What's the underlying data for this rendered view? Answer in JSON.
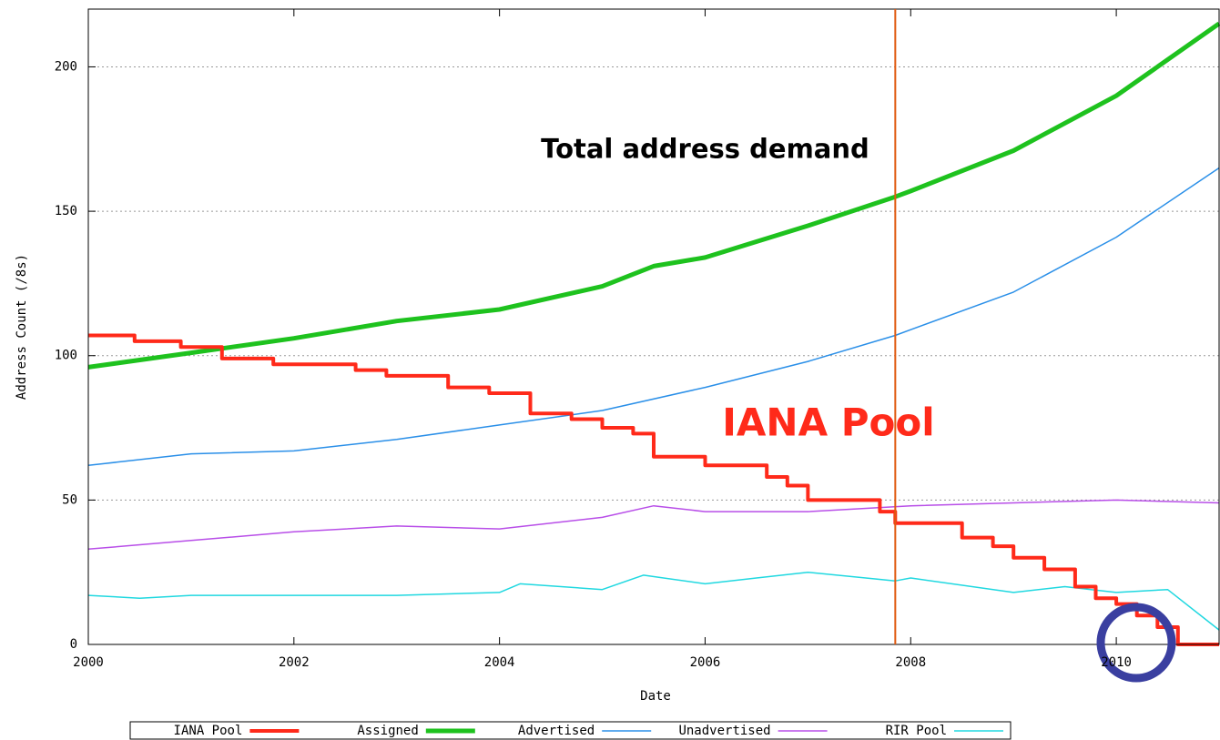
{
  "chart_data": {
    "type": "line",
    "x_label": "Date",
    "y_label": "Address Count (/8s)",
    "xlim": [
      2000,
      2011
    ],
    "ylim": [
      0,
      220
    ],
    "xticks": [
      2000,
      2002,
      2004,
      2006,
      2008,
      2010
    ],
    "yticks": [
      0,
      50,
      100,
      150,
      200
    ],
    "grid": true,
    "legend": "bottom",
    "marker_x": 2007.85,
    "marker_color": "#e05a10",
    "annotations": [
      {
        "text": "Total address demand",
        "x": 2006,
        "y": 171,
        "color": "#000000"
      },
      {
        "text": "IANA Pool",
        "x": 2007.2,
        "y": 76,
        "color": "#ff2a1a"
      }
    ],
    "series": [
      {
        "name": "IANA Pool",
        "color": "#ff2a1a",
        "width": 4,
        "x": [
          2000,
          2000.45,
          2000.45,
          2000.9,
          2000.9,
          2001.3,
          2001.3,
          2001.8,
          2001.8,
          2002.6,
          2002.6,
          2002.9,
          2002.9,
          2003.5,
          2003.5,
          2003.9,
          2003.9,
          2004.3,
          2004.3,
          2004.7,
          2004.7,
          2005,
          2005,
          2005.3,
          2005.3,
          2005.5,
          2005.5,
          2006,
          2006,
          2006.6,
          2006.6,
          2006.8,
          2006.8,
          2007,
          2007,
          2007.7,
          2007.7,
          2007.85,
          2007.85,
          2008.5,
          2008.5,
          2008.8,
          2008.8,
          2009,
          2009,
          2009.3,
          2009.3,
          2009.6,
          2009.6,
          2009.8,
          2009.8,
          2010,
          2010,
          2010.2,
          2010.2,
          2010.4,
          2010.4,
          2010.6,
          2010.6,
          2011
        ],
        "values": [
          107,
          107,
          105,
          105,
          103,
          103,
          99,
          99,
          97,
          97,
          95,
          95,
          93,
          93,
          89,
          89,
          87,
          87,
          80,
          80,
          78,
          78,
          75,
          75,
          73,
          73,
          65,
          65,
          62,
          62,
          58,
          58,
          55,
          55,
          50,
          50,
          46,
          46,
          42,
          42,
          37,
          37,
          34,
          34,
          30,
          30,
          26,
          26,
          20,
          20,
          16,
          16,
          14,
          14,
          10,
          10,
          6,
          6,
          0,
          0
        ]
      },
      {
        "name": "Assigned",
        "color": "#1ec21e",
        "width": 5,
        "x": [
          2000,
          2001,
          2002,
          2003,
          2004,
          2005,
          2005.5,
          2006,
          2007,
          2007.85,
          2008,
          2009,
          2010,
          2011
        ],
        "values": [
          96,
          101,
          106,
          112,
          116,
          124,
          131,
          134,
          145,
          155,
          157,
          171,
          190,
          215
        ]
      },
      {
        "name": "Advertised",
        "color": "#2a8fe8",
        "width": 1.5,
        "x": [
          2000,
          2001,
          2002,
          2003,
          2004,
          2005,
          2006,
          2007,
          2007.85,
          2008,
          2009,
          2010,
          2011
        ],
        "values": [
          62,
          66,
          67,
          71,
          76,
          81,
          89,
          98,
          107,
          109,
          122,
          141,
          165
        ]
      },
      {
        "name": "Unadvertised",
        "color": "#b84ee8",
        "width": 1.5,
        "x": [
          2000,
          2001,
          2002,
          2003,
          2004,
          2005,
          2005.5,
          2006,
          2007,
          2008,
          2009,
          2010,
          2011
        ],
        "values": [
          33,
          36,
          39,
          41,
          40,
          44,
          48,
          46,
          46,
          48,
          49,
          50,
          49
        ]
      },
      {
        "name": "RIR Pool",
        "color": "#20d8e0",
        "width": 1.5,
        "x": [
          2000,
          2000.5,
          2001,
          2002,
          2003,
          2004,
          2004.2,
          2005,
          2005.4,
          2006,
          2006.5,
          2007,
          2007.85,
          2008,
          2009,
          2009.5,
          2010,
          2010.5,
          2011
        ],
        "values": [
          17,
          16,
          17,
          17,
          17,
          18,
          21,
          19,
          24,
          21,
          23,
          25,
          22,
          23,
          18,
          20,
          18,
          19,
          5
        ]
      }
    ]
  }
}
